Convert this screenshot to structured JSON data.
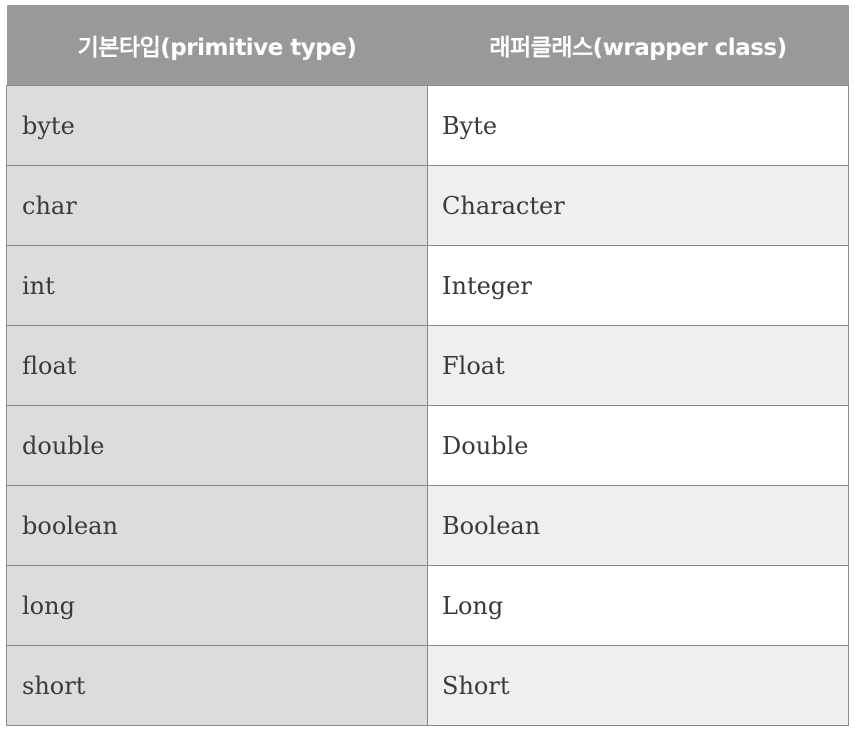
{
  "table": {
    "headers": [
      "기본타입(primitive type)",
      "래퍼클래스(wrapper class)"
    ],
    "rows": [
      [
        "byte",
        "Byte"
      ],
      [
        "char",
        "Character"
      ],
      [
        "int",
        "Integer"
      ],
      [
        "float",
        "Float"
      ],
      [
        "double",
        "Double"
      ],
      [
        "boolean",
        "Boolean"
      ],
      [
        "long",
        "Long"
      ],
      [
        "short",
        "Short"
      ]
    ]
  }
}
